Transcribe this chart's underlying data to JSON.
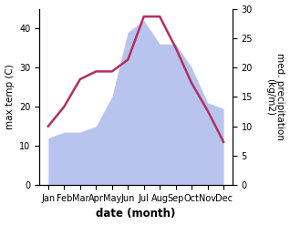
{
  "months": [
    "Jan",
    "Feb",
    "Mar",
    "Apr",
    "May",
    "Jun",
    "Jul",
    "Aug",
    "Sep",
    "Oct",
    "Nov",
    "Dec"
  ],
  "temperature": [
    15,
    20,
    27,
    29,
    29,
    32,
    43,
    43,
    35,
    26,
    19,
    11
  ],
  "precipitation": [
    8,
    9,
    9,
    10,
    15,
    26,
    28,
    24,
    24,
    20,
    14,
    13
  ],
  "temp_color": "#b03060",
  "precip_color_fill": "#b8c4ee",
  "ylabel_left": "max temp (C)",
  "ylabel_right": "med. precipitation\n(kg/m2)",
  "xlabel": "date (month)",
  "ylim_left": [
    0,
    45
  ],
  "ylim_right": [
    0,
    30
  ],
  "yticks_left": [
    0,
    10,
    20,
    30,
    40
  ],
  "yticks_right": [
    0,
    5,
    10,
    15,
    20,
    25,
    30
  ],
  "bg_color": "#ffffff",
  "label_fontsize": 7.5,
  "tick_fontsize": 7,
  "xlabel_fontsize": 8.5
}
